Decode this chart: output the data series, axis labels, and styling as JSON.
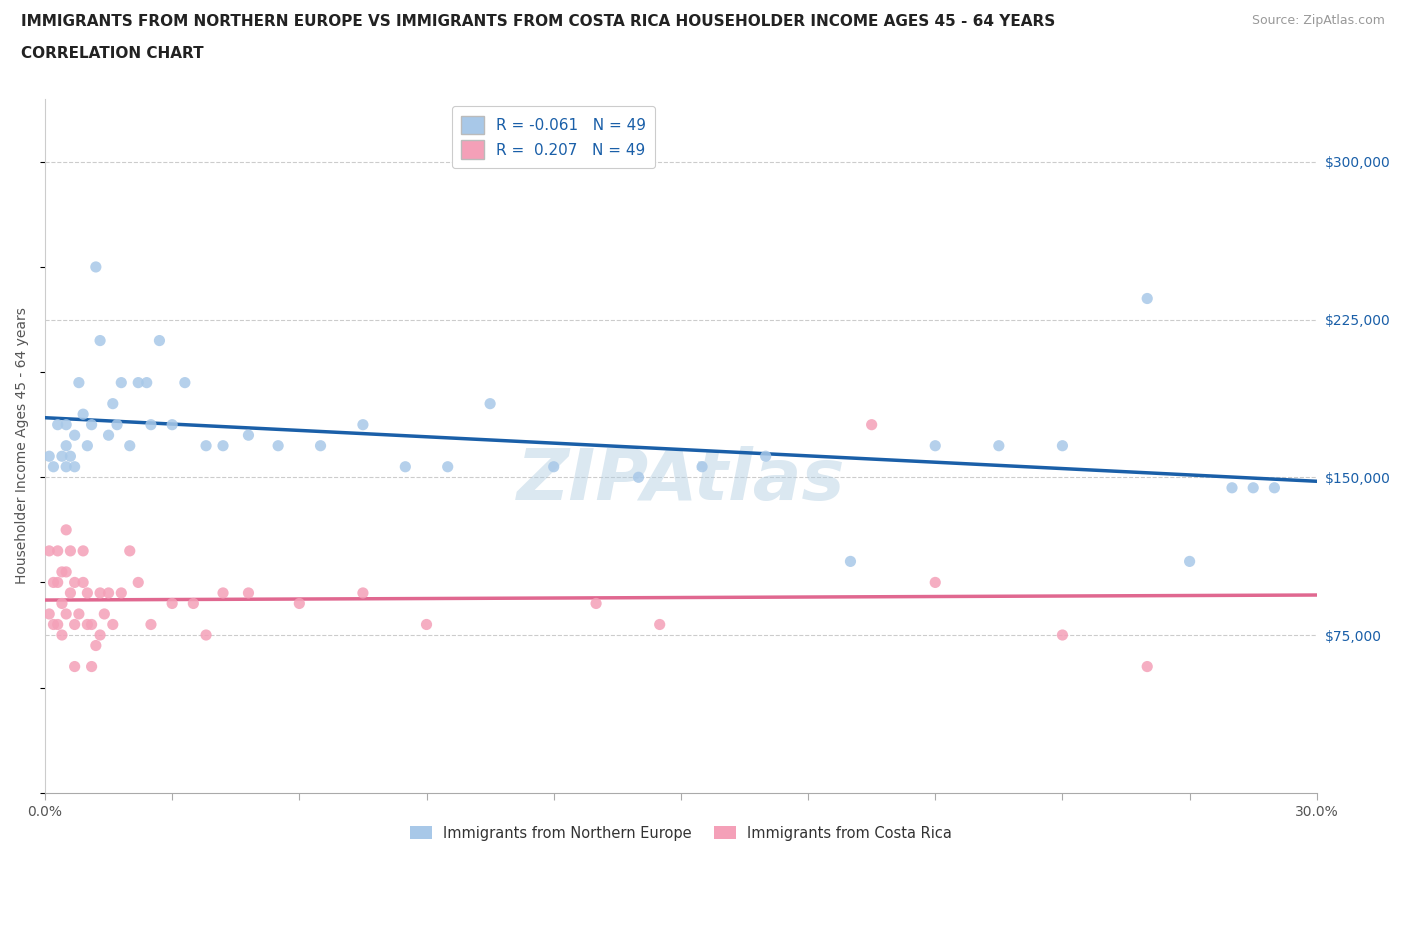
{
  "title_line1": "IMMIGRANTS FROM NORTHERN EUROPE VS IMMIGRANTS FROM COSTA RICA HOUSEHOLDER INCOME AGES 45 - 64 YEARS",
  "title_line2": "CORRELATION CHART",
  "source_text": "Source: ZipAtlas.com",
  "ylabel": "Householder Income Ages 45 - 64 years",
  "xlim": [
    0.0,
    0.3
  ],
  "ylim": [
    0,
    330000
  ],
  "xtick_vals": [
    0.0,
    0.03,
    0.06,
    0.09,
    0.12,
    0.15,
    0.18,
    0.21,
    0.24,
    0.27,
    0.3
  ],
  "xticklabels": [
    "0.0%",
    "",
    "",
    "",
    "",
    "",
    "",
    "",
    "",
    "",
    "30.0%"
  ],
  "ytick_right_values": [
    75000,
    150000,
    225000,
    300000
  ],
  "ytick_right_labels": [
    "$75,000",
    "$150,000",
    "$225,000",
    "$300,000"
  ],
  "R_blue": -0.061,
  "R_pink": 0.207,
  "N_blue": 49,
  "N_pink": 49,
  "legend_label_blue": "Immigrants from Northern Europe",
  "legend_label_pink": "Immigrants from Costa Rica",
  "color_blue": "#a8c8e8",
  "color_pink": "#f4a0b8",
  "line_color_blue": "#1a5fa8",
  "line_color_pink": "#e06890",
  "watermark": "ZIPAtlas",
  "blue_x": [
    0.001,
    0.002,
    0.003,
    0.004,
    0.005,
    0.005,
    0.005,
    0.006,
    0.007,
    0.007,
    0.008,
    0.009,
    0.01,
    0.011,
    0.012,
    0.013,
    0.015,
    0.016,
    0.017,
    0.018,
    0.02,
    0.022,
    0.024,
    0.025,
    0.027,
    0.03,
    0.033,
    0.038,
    0.042,
    0.048,
    0.055,
    0.065,
    0.075,
    0.085,
    0.095,
    0.105,
    0.12,
    0.14,
    0.155,
    0.17,
    0.19,
    0.21,
    0.225,
    0.24,
    0.26,
    0.27,
    0.28,
    0.285,
    0.29
  ],
  "blue_y": [
    160000,
    155000,
    175000,
    160000,
    165000,
    155000,
    175000,
    160000,
    170000,
    155000,
    195000,
    180000,
    165000,
    175000,
    250000,
    215000,
    170000,
    185000,
    175000,
    195000,
    165000,
    195000,
    195000,
    175000,
    215000,
    175000,
    195000,
    165000,
    165000,
    170000,
    165000,
    165000,
    175000,
    155000,
    155000,
    185000,
    155000,
    150000,
    155000,
    160000,
    110000,
    165000,
    165000,
    165000,
    235000,
    110000,
    145000,
    145000,
    145000
  ],
  "pink_x": [
    0.001,
    0.001,
    0.002,
    0.002,
    0.003,
    0.003,
    0.003,
    0.004,
    0.004,
    0.004,
    0.005,
    0.005,
    0.005,
    0.006,
    0.006,
    0.007,
    0.007,
    0.007,
    0.008,
    0.009,
    0.009,
    0.01,
    0.01,
    0.011,
    0.011,
    0.012,
    0.013,
    0.013,
    0.014,
    0.015,
    0.016,
    0.018,
    0.02,
    0.022,
    0.025,
    0.03,
    0.035,
    0.038,
    0.042,
    0.048,
    0.06,
    0.075,
    0.09,
    0.13,
    0.145,
    0.195,
    0.21,
    0.24,
    0.26
  ],
  "pink_y": [
    85000,
    115000,
    100000,
    80000,
    115000,
    100000,
    80000,
    90000,
    105000,
    75000,
    125000,
    105000,
    85000,
    95000,
    115000,
    100000,
    80000,
    60000,
    85000,
    115000,
    100000,
    80000,
    95000,
    80000,
    60000,
    70000,
    95000,
    75000,
    85000,
    95000,
    80000,
    95000,
    115000,
    100000,
    80000,
    90000,
    90000,
    75000,
    95000,
    95000,
    90000,
    95000,
    80000,
    90000,
    80000,
    175000,
    100000,
    75000,
    60000
  ]
}
